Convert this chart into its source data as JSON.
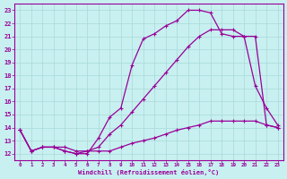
{
  "xlabel": "Windchill (Refroidissement éolien,°C)",
  "bg_color": "#c8f0f0",
  "grid_color": "#a8d8d8",
  "line_color": "#990099",
  "xlim": [
    -0.5,
    23.5
  ],
  "ylim": [
    11.5,
    23.5
  ],
  "yticks": [
    12,
    13,
    14,
    15,
    16,
    17,
    18,
    19,
    20,
    21,
    22,
    23
  ],
  "xticks": [
    0,
    1,
    2,
    3,
    4,
    5,
    6,
    7,
    8,
    9,
    10,
    11,
    12,
    13,
    14,
    15,
    16,
    17,
    18,
    19,
    20,
    21,
    22,
    23
  ],
  "line1_x": [
    0,
    1,
    2,
    3,
    4,
    5,
    6,
    7,
    8,
    9,
    10,
    11,
    12,
    13,
    14,
    15,
    16,
    17,
    18,
    19,
    20,
    21,
    22,
    23
  ],
  "line1_y": [
    13.8,
    12.2,
    12.5,
    12.5,
    12.2,
    12.0,
    12.0,
    13.2,
    14.8,
    15.5,
    18.8,
    20.8,
    21.2,
    21.8,
    22.2,
    23.0,
    23.0,
    22.8,
    21.2,
    21.0,
    21.0,
    17.2,
    15.5,
    14.2
  ],
  "line2_x": [
    0,
    1,
    2,
    3,
    4,
    5,
    6,
    7,
    8,
    9,
    10,
    11,
    12,
    13,
    14,
    15,
    16,
    17,
    18,
    19,
    20,
    21,
    22,
    23
  ],
  "line2_y": [
    13.8,
    12.2,
    12.5,
    12.5,
    12.2,
    12.0,
    12.2,
    12.5,
    13.5,
    14.2,
    15.2,
    16.2,
    17.2,
    18.2,
    19.2,
    20.2,
    21.0,
    21.5,
    21.5,
    21.5,
    21.0,
    21.0,
    14.2,
    14.0
  ],
  "line3_x": [
    0,
    1,
    2,
    3,
    4,
    5,
    6,
    7,
    8,
    9,
    10,
    11,
    12,
    13,
    14,
    15,
    16,
    17,
    18,
    19,
    20,
    21,
    22,
    23
  ],
  "line3_y": [
    13.8,
    12.2,
    12.5,
    12.5,
    12.5,
    12.2,
    12.2,
    12.2,
    12.2,
    12.5,
    12.8,
    13.0,
    13.2,
    13.5,
    13.8,
    14.0,
    14.2,
    14.5,
    14.5,
    14.5,
    14.5,
    14.5,
    14.2,
    14.0
  ]
}
